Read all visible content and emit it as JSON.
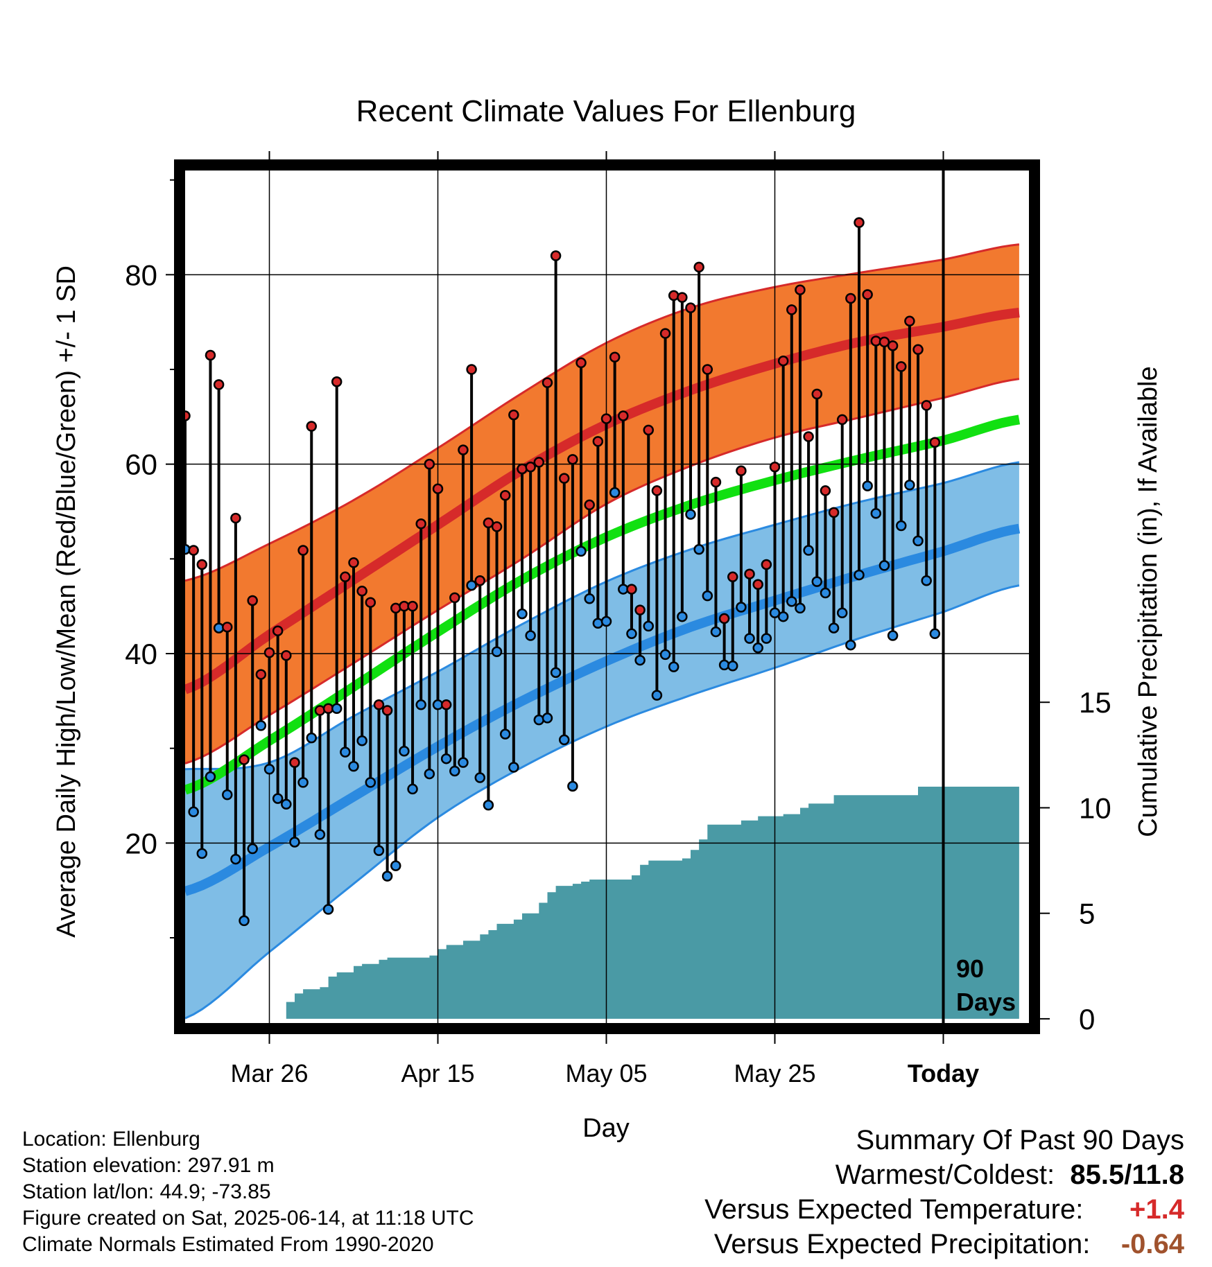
{
  "chart_data": {
    "type": "line",
    "title": "Recent Climate Values For Ellenburg",
    "xlabel": "Day",
    "ylabel": "Average Daily High/Low/Mean (Red/Blue/Green) +/- 1 SD",
    "y2label": "Cumulative Precipitation (in), If Available",
    "x_ticks": [
      {
        "day": 10,
        "label": "Mar 26"
      },
      {
        "day": 30,
        "label": "Apr 15"
      },
      {
        "day": 50,
        "label": "May 05"
      },
      {
        "day": 70,
        "label": "May 25"
      },
      {
        "day": 90,
        "label": "Today"
      }
    ],
    "ylim": [
      1,
      91
    ],
    "y_ticks": [
      20,
      40,
      60,
      80
    ],
    "y2lim": [
      -0.2,
      40.2
    ],
    "y2_ticks": [
      0,
      5,
      10,
      15
    ],
    "grid": true,
    "today_marker_label": [
      "90",
      "Days"
    ],
    "normals": {
      "x": [
        0,
        10,
        20,
        30,
        40,
        50,
        60,
        70,
        80,
        90,
        99
      ],
      "high_mean": [
        36.2,
        42.0,
        47.8,
        53.6,
        59.4,
        64.2,
        67.8,
        70.6,
        72.9,
        74.5,
        76.0
      ],
      "high_sd_lower": [
        28.4,
        33.5,
        39.0,
        44.6,
        50.0,
        55.8,
        59.8,
        62.8,
        64.9,
        67.0,
        69.0
      ],
      "high_sd_upper": [
        47.7,
        51.6,
        56.2,
        61.7,
        67.5,
        72.8,
        76.5,
        78.7,
        80.2,
        81.6,
        83.2
      ],
      "mean": [
        25.6,
        30.8,
        36.5,
        42.3,
        47.8,
        52.3,
        55.7,
        58.3,
        60.5,
        62.5,
        64.7
      ],
      "low_mean": [
        14.9,
        19.6,
        24.9,
        30.2,
        35.0,
        39.2,
        42.8,
        45.6,
        48.3,
        50.8,
        53.2
      ],
      "low_sd_lower": [
        1.5,
        8.5,
        15.7,
        22.7,
        28.0,
        32.3,
        35.6,
        38.5,
        41.6,
        44.4,
        47.2
      ],
      "low_sd_upper": [
        27.8,
        28.5,
        33.4,
        38.1,
        43.1,
        47.6,
        51.0,
        53.6,
        56.0,
        58.0,
        60.2
      ]
    },
    "series": [
      {
        "name": "High",
        "color": "#d62a2a",
        "values": [
          65.1,
          50.9,
          49.4,
          71.5,
          68.4,
          42.8,
          54.3,
          28.8,
          45.6,
          37.8,
          40.1,
          42.4,
          39.8,
          28.5,
          50.9,
          64.0,
          34.0,
          34.2,
          68.7,
          48.1,
          49.6,
          46.6,
          45.4,
          34.6,
          34.0,
          44.8,
          45.0,
          45.0,
          53.7,
          60.0,
          57.4,
          34.6,
          45.9,
          61.5,
          70.0,
          47.7,
          53.8,
          53.4,
          56.7,
          65.2,
          59.5,
          59.7,
          60.2,
          68.6,
          82.0,
          58.5,
          60.5,
          70.7,
          55.7,
          62.4,
          64.8,
          71.3,
          65.1,
          46.8,
          44.6,
          63.6,
          57.2,
          73.8,
          77.8,
          77.6,
          76.5,
          80.8,
          70.0,
          58.1,
          43.7,
          48.1,
          59.3,
          48.4,
          47.3,
          49.4,
          59.7,
          70.9,
          76.3,
          78.4,
          62.9,
          67.4,
          57.2,
          54.9,
          64.7,
          77.5,
          85.5,
          77.9,
          73.0,
          72.9,
          72.5,
          70.3,
          75.1,
          72.1,
          66.2,
          62.3
        ]
      },
      {
        "name": "Low",
        "color": "#2b8ae0",
        "values": [
          51.0,
          23.3,
          18.9,
          27.0,
          42.7,
          25.1,
          18.3,
          11.8,
          19.4,
          32.4,
          27.8,
          24.7,
          24.1,
          20.1,
          26.4,
          31.1,
          20.9,
          13.0,
          34.2,
          29.6,
          28.1,
          30.8,
          26.4,
          19.2,
          16.5,
          17.6,
          29.7,
          25.7,
          34.6,
          27.3,
          34.6,
          28.9,
          27.6,
          28.5,
          47.2,
          26.9,
          24.0,
          40.2,
          31.5,
          28.0,
          44.2,
          41.9,
          33.0,
          33.2,
          38.0,
          30.9,
          26.0,
          50.8,
          45.8,
          43.2,
          43.4,
          57.0,
          46.8,
          42.1,
          39.3,
          42.9,
          35.6,
          39.9,
          38.6,
          43.9,
          54.7,
          51.0,
          46.1,
          42.3,
          38.8,
          38.7,
          44.9,
          41.6,
          40.6,
          41.6,
          44.3,
          43.9,
          45.5,
          44.8,
          50.9,
          47.6,
          46.4,
          42.7,
          44.3,
          40.9,
          48.3,
          57.7,
          54.8,
          49.3,
          41.9,
          53.5,
          57.8,
          51.9,
          47.7,
          42.1
        ]
      },
      {
        "name": "Cumulative Precipitation",
        "color": "#4a9aa5",
        "x": [
          0,
          11,
          12,
          13,
          14,
          16,
          17,
          18,
          20,
          21,
          23,
          24,
          29,
          30,
          31,
          33,
          35,
          36,
          37,
          39,
          40,
          42,
          43,
          44,
          46,
          47,
          48,
          53,
          54,
          55,
          58,
          59,
          60,
          61,
          62,
          66,
          68,
          71,
          73,
          74,
          75,
          77,
          86,
          87,
          99
        ],
        "values": [
          0,
          0,
          0.8,
          1.2,
          1.4,
          1.5,
          2.0,
          2.2,
          2.5,
          2.6,
          2.8,
          2.9,
          3.0,
          3.3,
          3.5,
          3.7,
          4.0,
          4.2,
          4.5,
          4.7,
          5.0,
          5.5,
          6.0,
          6.3,
          6.4,
          6.5,
          6.6,
          6.8,
          7.3,
          7.5,
          7.5,
          7.6,
          8.0,
          8.5,
          9.2,
          9.4,
          9.6,
          9.7,
          10.0,
          10.2,
          10.2,
          10.6,
          10.6,
          11.0,
          11.0
        ]
      }
    ]
  },
  "footer": {
    "location": "Location: Ellenburg",
    "elevation": "Station elevation: 297.91 m",
    "latlon": "Station lat/lon: 44.9; -73.85",
    "created": "Figure created on Sat, 2025-06-14, at 11:18 UTC",
    "normals": "Climate Normals Estimated From 1990-2020"
  },
  "summary": {
    "heading": "Summary Of Past 90 Days",
    "warm_cold_label": "Warmest/Coldest:",
    "warm_cold_value": "85.5/11.8",
    "temp_label": "Versus Expected Temperature:",
    "temp_value": "+1.4",
    "temp_color": "#d62a2a",
    "precip_label": "Versus Expected Precipitation:",
    "precip_value": "-0.64",
    "precip_color": "#a0522d"
  }
}
